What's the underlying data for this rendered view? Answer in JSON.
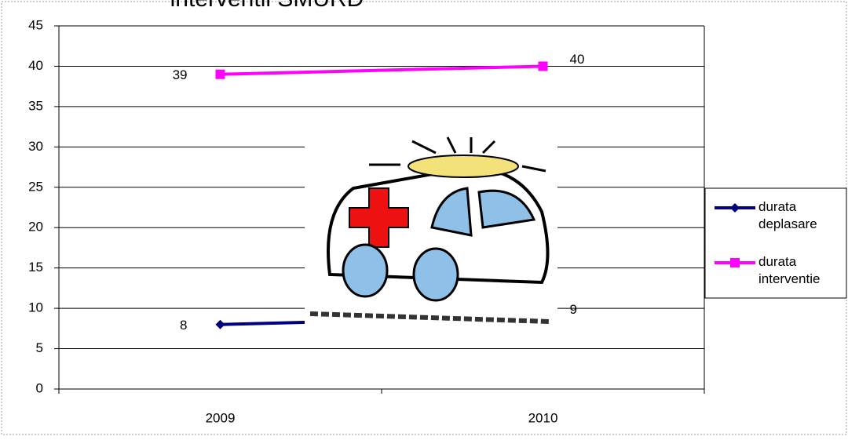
{
  "chart_data": {
    "type": "line",
    "title": "interventii SMURD",
    "categories": [
      "2009",
      "2010"
    ],
    "series": [
      {
        "name": "durata deplasare",
        "color": "#000080",
        "marker": "diamond",
        "values": [
          8,
          9
        ]
      },
      {
        "name": "durata interventie",
        "color": "#ff00ff",
        "marker": "square",
        "values": [
          39,
          40
        ]
      }
    ],
    "ylim": [
      0,
      45
    ],
    "yticks": [
      0,
      5,
      10,
      15,
      20,
      25,
      30,
      35,
      40,
      45
    ],
    "grid": true,
    "legend": "right"
  }
}
